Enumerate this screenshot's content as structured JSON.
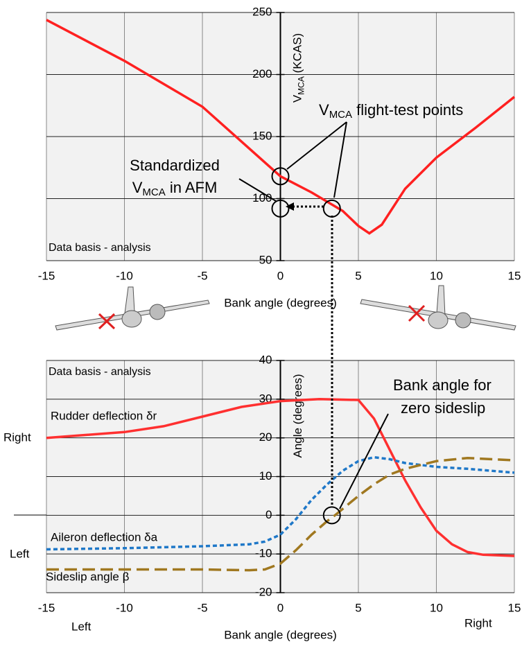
{
  "chart_data": [
    {
      "type": "line",
      "x_label": "Bank angle (degrees)",
      "y_label": [
        "V",
        "MCA",
        " (KCAS)"
      ],
      "xlim": [
        -15,
        15
      ],
      "xticks": [
        -15,
        -10,
        -5,
        0,
        5,
        10,
        15
      ],
      "ylim": [
        50,
        250
      ],
      "yticks": [
        50,
        100,
        150,
        200,
        250
      ],
      "grid": true,
      "series": [
        {
          "name": "VMCA",
          "color": "#ff2020",
          "line_style": "solid",
          "x": [
            -15,
            -10,
            -5,
            -2.5,
            0,
            2,
            4,
            5,
            5.7,
            6.5,
            8,
            10,
            12.5,
            15
          ],
          "values": [
            244,
            211,
            174,
            146,
            118,
            105,
            90,
            78,
            72,
            79,
            108,
            133,
            157,
            182
          ]
        }
      ],
      "points": {
        "x": [
          0,
          0,
          3.3
        ],
        "values": [
          118,
          92,
          92
        ]
      },
      "annotations": {
        "data_basis": "Data basis - analysis",
        "flight_test": [
          "V",
          "MCA",
          " flight-test points"
        ],
        "standardized": "Standardized",
        "afm": [
          "V",
          "MCA",
          " in AFM"
        ]
      }
    },
    {
      "type": "line",
      "x_label": "Bank angle (degrees)",
      "y_label": "Angle (degrees)",
      "xlim": [
        -15,
        15
      ],
      "xticks": [
        -15,
        -10,
        -5,
        0,
        5,
        10,
        15
      ],
      "ylim": [
        -20,
        40
      ],
      "yticks": [
        -20,
        -10,
        0,
        10,
        20,
        30,
        40
      ],
      "grid": true,
      "series": [
        {
          "name": "Rudder deflection δr",
          "color": "#ff3030",
          "line_style": "solid",
          "x": [
            -15,
            -10,
            -7.5,
            -5,
            -2.5,
            0,
            2.5,
            5,
            6,
            7,
            8,
            9,
            10,
            11,
            12,
            13,
            15
          ],
          "values": [
            20,
            21.5,
            23,
            25.5,
            28,
            29.5,
            30,
            29.8,
            25,
            17,
            9,
            2,
            -4,
            -7.5,
            -9.5,
            -10.2,
            -10.5
          ]
        },
        {
          "name": "Aileron deflection δa",
          "color": "#1f78c8",
          "line_style": "short",
          "x": [
            -15,
            -10,
            -5,
            -2,
            -1,
            0,
            1,
            2,
            3,
            4,
            5,
            6,
            7,
            8,
            10,
            12,
            15
          ],
          "values": [
            -8.8,
            -8.5,
            -8,
            -7.5,
            -6.8,
            -5,
            -1,
            4,
            8,
            11.5,
            14,
            15,
            14.5,
            13.5,
            12.5,
            12,
            11
          ]
        },
        {
          "name": "Sideslip angle β",
          "color": "#a07820",
          "line_style": "long",
          "x": [
            -15,
            -5,
            -2,
            -1,
            0,
            1,
            2,
            3,
            3.5,
            5,
            6,
            7,
            8,
            10,
            12,
            15
          ],
          "values": [
            -14,
            -14,
            -14.2,
            -14,
            -12.5,
            -9,
            -5,
            -1.5,
            0,
            5,
            8,
            10.5,
            12,
            14,
            14.8,
            14.2
          ]
        }
      ],
      "points": {
        "x": [
          3.3
        ],
        "values": [
          0
        ]
      },
      "annotations": {
        "data_basis": "Data basis - analysis",
        "bank1": "Bank angle for",
        "bank2": "zero sideslip",
        "right_side": "Right",
        "left_side": "Left",
        "left_bottom": "Left",
        "right_bottom": "Right"
      }
    }
  ]
}
